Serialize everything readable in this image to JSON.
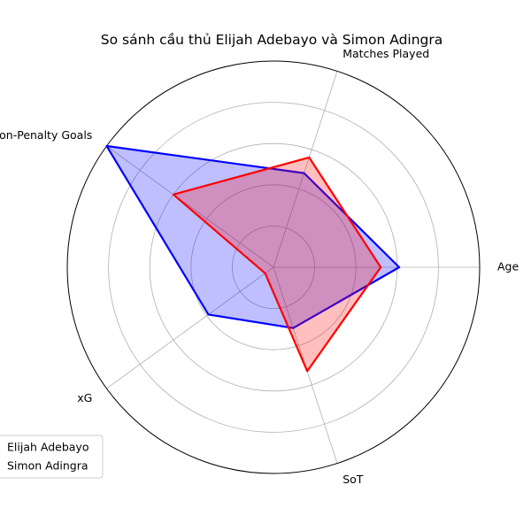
{
  "chart_data": {
    "type": "radar",
    "title": "So sánh cầu thủ Elijah Adebayo và Simon Adingra",
    "axes": [
      "Age",
      "Matches Played",
      "non-Penalty Goals",
      "xG",
      "SoT"
    ],
    "rlim": [
      0,
      1
    ],
    "grid": true,
    "legend_position": "lower-left",
    "series": [
      {
        "name": "Elijah Adebayo",
        "color": "#0000ff",
        "values": [
          0.61,
          0.48,
          1.0,
          0.39,
          0.31
        ]
      },
      {
        "name": "Simon Adingra",
        "color": "#ff0000",
        "values": [
          0.52,
          0.56,
          0.6,
          0.05,
          0.53
        ]
      }
    ]
  }
}
